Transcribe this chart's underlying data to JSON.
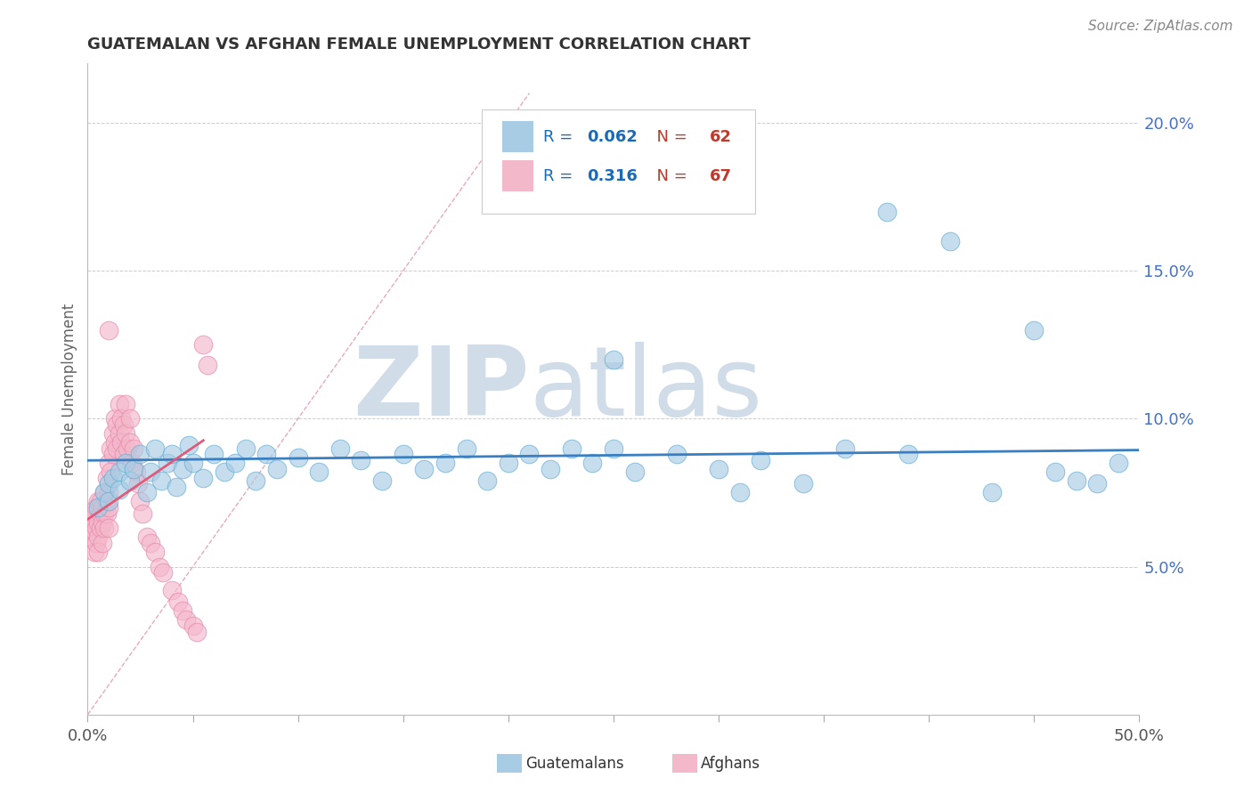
{
  "title": "GUATEMALAN VS AFGHAN FEMALE UNEMPLOYMENT CORRELATION CHART",
  "source": "Source: ZipAtlas.com",
  "ylabel": "Female Unemployment",
  "xlim": [
    0.0,
    0.5
  ],
  "ylim": [
    0.0,
    0.22
  ],
  "xtick_vals": [
    0.0,
    0.05,
    0.1,
    0.15,
    0.2,
    0.25,
    0.3,
    0.35,
    0.4,
    0.45,
    0.5
  ],
  "ytick_vals": [
    0.05,
    0.1,
    0.15,
    0.2
  ],
  "blue_R": 0.062,
  "blue_N": 62,
  "pink_R": 0.316,
  "pink_N": 67,
  "blue_color": "#a8cce4",
  "pink_color": "#f4b8cb",
  "blue_edge_color": "#6aafd4",
  "pink_edge_color": "#e88aaa",
  "blue_line_color": "#3a7fc1",
  "pink_line_color": "#e05a7a",
  "diagonal_color": "#e8a0b0",
  "bg_color": "#ffffff",
  "watermark_zip": "ZIP",
  "watermark_atlas": "atlas",
  "watermark_color": "#d0dce8",
  "legend_R_color": "#1a6ab5",
  "legend_N_color": "#c0392b",
  "blue_scatter_x": [
    0.005,
    0.008,
    0.01,
    0.01,
    0.012,
    0.015,
    0.015,
    0.018,
    0.02,
    0.022,
    0.025,
    0.028,
    0.03,
    0.032,
    0.035,
    0.038,
    0.04,
    0.042,
    0.045,
    0.048,
    0.05,
    0.055,
    0.06,
    0.065,
    0.07,
    0.075,
    0.08,
    0.085,
    0.09,
    0.1,
    0.11,
    0.12,
    0.13,
    0.14,
    0.15,
    0.16,
    0.17,
    0.18,
    0.19,
    0.2,
    0.21,
    0.22,
    0.23,
    0.24,
    0.25,
    0.26,
    0.28,
    0.3,
    0.32,
    0.34,
    0.36,
    0.38,
    0.39,
    0.41,
    0.43,
    0.45,
    0.46,
    0.47,
    0.48,
    0.49,
    0.25,
    0.31
  ],
  "blue_scatter_y": [
    0.07,
    0.075,
    0.078,
    0.072,
    0.08,
    0.082,
    0.076,
    0.085,
    0.079,
    0.083,
    0.088,
    0.075,
    0.082,
    0.09,
    0.079,
    0.085,
    0.088,
    0.077,
    0.083,
    0.091,
    0.085,
    0.08,
    0.088,
    0.082,
    0.085,
    0.09,
    0.079,
    0.088,
    0.083,
    0.087,
    0.082,
    0.09,
    0.086,
    0.079,
    0.088,
    0.083,
    0.085,
    0.09,
    0.079,
    0.085,
    0.088,
    0.083,
    0.09,
    0.085,
    0.09,
    0.082,
    0.088,
    0.083,
    0.086,
    0.078,
    0.09,
    0.17,
    0.088,
    0.16,
    0.075,
    0.13,
    0.082,
    0.079,
    0.078,
    0.085,
    0.12,
    0.075
  ],
  "pink_scatter_x": [
    0.002,
    0.002,
    0.003,
    0.003,
    0.003,
    0.004,
    0.004,
    0.004,
    0.005,
    0.005,
    0.005,
    0.005,
    0.006,
    0.006,
    0.006,
    0.007,
    0.007,
    0.007,
    0.008,
    0.008,
    0.008,
    0.009,
    0.009,
    0.009,
    0.01,
    0.01,
    0.01,
    0.01,
    0.011,
    0.011,
    0.012,
    0.012,
    0.013,
    0.013,
    0.014,
    0.014,
    0.015,
    0.015,
    0.016,
    0.016,
    0.017,
    0.017,
    0.018,
    0.018,
    0.019,
    0.02,
    0.02,
    0.021,
    0.022,
    0.023,
    0.024,
    0.025,
    0.026,
    0.028,
    0.03,
    0.032,
    0.034,
    0.036,
    0.04,
    0.043,
    0.045,
    0.047,
    0.05,
    0.052,
    0.055,
    0.057,
    0.01
  ],
  "pink_scatter_y": [
    0.065,
    0.06,
    0.068,
    0.062,
    0.055,
    0.07,
    0.063,
    0.058,
    0.072,
    0.065,
    0.06,
    0.055,
    0.068,
    0.072,
    0.063,
    0.065,
    0.07,
    0.058,
    0.075,
    0.068,
    0.063,
    0.08,
    0.072,
    0.068,
    0.085,
    0.075,
    0.07,
    0.063,
    0.09,
    0.082,
    0.095,
    0.088,
    0.1,
    0.092,
    0.098,
    0.09,
    0.105,
    0.095,
    0.1,
    0.092,
    0.098,
    0.088,
    0.105,
    0.095,
    0.09,
    0.1,
    0.092,
    0.085,
    0.09,
    0.082,
    0.078,
    0.072,
    0.068,
    0.06,
    0.058,
    0.055,
    0.05,
    0.048,
    0.042,
    0.038,
    0.035,
    0.032,
    0.03,
    0.028,
    0.125,
    0.118,
    0.13
  ]
}
